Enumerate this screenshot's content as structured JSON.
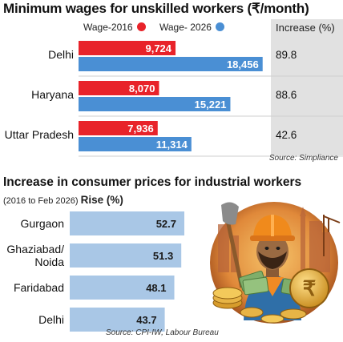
{
  "chart_data": [
    {
      "type": "bar",
      "title": "Minimum wages for unskilled workers (₹/month)",
      "categories": [
        "Delhi",
        "Haryana",
        "Uttar Pradesh"
      ],
      "series": [
        {
          "name": "Wage-2016",
          "values": [
            9724,
            8070,
            7936
          ],
          "labels": [
            "9,724",
            "8,070",
            "7,936"
          ]
        },
        {
          "name": "Wage- 2026",
          "values": [
            18456,
            15221,
            11314
          ],
          "labels": [
            "18,456",
            "15,221",
            "11,314"
          ]
        }
      ],
      "increase_header": "Increase (%)",
      "increase": [
        "89.8",
        "88.6",
        "42.6"
      ],
      "source": "Source: Simpliance",
      "xlim": [
        0,
        18800
      ],
      "colors": {
        "Wage-2016": "#e8232a",
        "Wage- 2026": "#4a8fd4",
        "panel": "#e1e1e1"
      }
    },
    {
      "type": "bar",
      "title": "Increase in consumer prices for industrial workers",
      "subtitle": "(2016 to Feb 2026)",
      "subtitle_bold": "Rise (%)",
      "categories": [
        "Gurgaon",
        "Ghaziabad/ Noida",
        "Faridabad",
        "Delhi"
      ],
      "category_lines": [
        [
          "Gurgaon"
        ],
        [
          "Ghaziabad/",
          "Noida"
        ],
        [
          "Faridabad"
        ],
        [
          "Delhi"
        ]
      ],
      "values": [
        52.7,
        51.3,
        48.1,
        43.7
      ],
      "labels": [
        "52.7",
        "51.3",
        "48.1",
        "43.7"
      ],
      "source": "Source: CPI-IW, Labour Bureau",
      "colors": {
        "bar": "#a9c7e6"
      }
    }
  ],
  "illustration": {
    "name": "worker-with-money-illustration",
    "icon": "construction-worker-coins-notes"
  }
}
